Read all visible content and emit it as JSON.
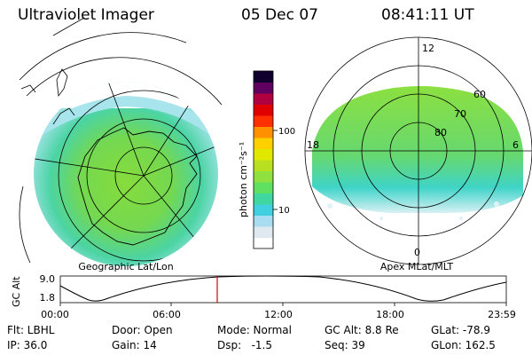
{
  "header": {
    "instrument": "Ultraviolet Imager",
    "date": "05 Dec 07",
    "time": "08:41:11 UT"
  },
  "left_panel": {
    "caption": "Geographic Lat/Lon"
  },
  "right_panel": {
    "caption": "Apex MLat/MLT",
    "mlt_labels": [
      "12",
      "18",
      "6",
      "0"
    ],
    "mlat_labels": [
      "60",
      "70",
      "80"
    ]
  },
  "colorbar": {
    "label": "photon cm⁻²s⁻¹",
    "ticks": [
      "100",
      "10"
    ],
    "colors": [
      "#ffffff",
      "#e0e8f0",
      "#a8dcf0",
      "#40d0e0",
      "#40d8a0",
      "#60e060",
      "#90e040",
      "#b8e020",
      "#e0e800",
      "#ffd000",
      "#ff9000",
      "#ff3000",
      "#e00000",
      "#b00040",
      "#600060",
      "#100030"
    ]
  },
  "orbit": {
    "axis_label": "GC Alt",
    "y_ticks": [
      "9.0",
      "1.8"
    ],
    "x_ticks": [
      "00:00",
      "06:00",
      "12:00",
      "18:00",
      "23:59"
    ]
  },
  "footer": {
    "row1": [
      "Flt: LBHL",
      "Door: Open",
      "Mode: Normal",
      "GC Alt: 8.8 Re",
      "GLat: -78.9"
    ],
    "row2": [
      "IP: 36.0",
      "Gain: 14",
      "Dsp:   -1.5",
      "Seq: 39",
      "GLon: 162.5"
    ]
  }
}
